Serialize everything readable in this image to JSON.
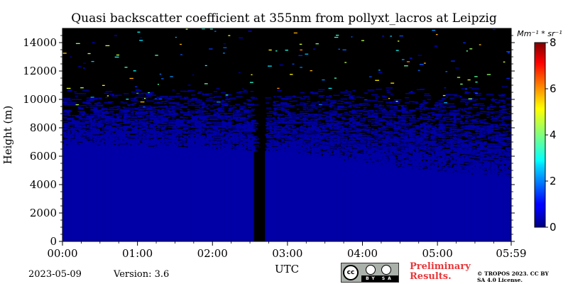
{
  "chart_data": {
    "type": "heatmap",
    "title": "Quasi backscatter coefficient at 355nm from pollyxt_lacros at Leipzig",
    "xlabel": "UTC",
    "ylabel": "Height (m)",
    "xlim": [
      "00:00",
      "05:59"
    ],
    "x_ticks": [
      "00:00",
      "01:00",
      "02:00",
      "03:00",
      "04:00",
      "05:00",
      "05:59"
    ],
    "ylim": [
      0,
      15000
    ],
    "y_ticks": [
      0,
      2000,
      4000,
      6000,
      8000,
      10000,
      12000,
      14000
    ],
    "colorbar": {
      "label": "Mm⁻¹ * sr⁻¹",
      "range": [
        0,
        8
      ],
      "ticks": [
        0,
        2,
        4,
        6,
        8
      ],
      "colormap": "jet"
    },
    "data_gap": {
      "start": "02:31",
      "end": "02:40"
    },
    "dense_layer_top_m": [
      {
        "time": "00:00",
        "height": 6800
      },
      {
        "time": "01:00",
        "height": 6700
      },
      {
        "time": "02:00",
        "height": 6500
      },
      {
        "time": "03:00",
        "height": 6300
      },
      {
        "time": "04:00",
        "height": 5500
      },
      {
        "time": "05:00",
        "height": 4900
      },
      {
        "time": "05:59",
        "height": 4500
      }
    ],
    "noisy_signal_top_m": 11000,
    "background_value": 0.3
  },
  "footer": {
    "date": "2023-05-09",
    "version": "Version: 3.6",
    "preliminary": "Preliminary Results.",
    "copyright": "© TROPOS 2023. CC BY SA 4.0 License.",
    "license_strip": "BY SA"
  },
  "colors": {
    "background_signal": "#0a3ce6",
    "no_signal": "#000000",
    "preliminary_text": "#e8373a"
  }
}
